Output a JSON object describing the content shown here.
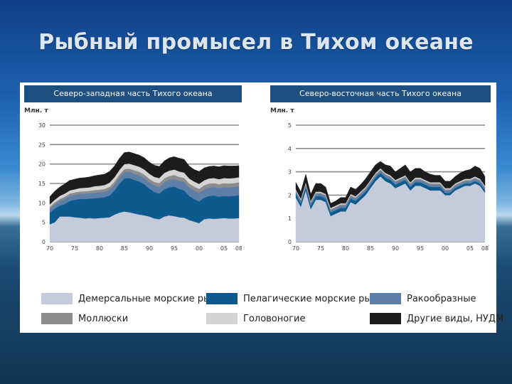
{
  "slide": {
    "title": "Рыбный промысел в Тихом океане"
  },
  "legend": [
    {
      "key": "dem",
      "label": "Демерсальные морские рыбы",
      "color": "#c4ccdb"
    },
    {
      "key": "pel",
      "label": "Пелагические морские рыбы",
      "color": "#0c5a8e"
    },
    {
      "key": "crust",
      "label": "Ракообразные",
      "color": "#5d7fa8"
    },
    {
      "key": "moll",
      "label": "Моллюски",
      "color": "#8c8c8c"
    },
    {
      "key": "ceph",
      "label": "Головоногие",
      "color": "#d4d4d4"
    },
    {
      "key": "other",
      "label": "Другие виды, НУДМ",
      "color": "#1c1c1c"
    }
  ],
  "chart_data": [
    {
      "type": "area",
      "stacked": true,
      "title": "Северо-западная часть Тихого океана",
      "ylabel": "Млн. т",
      "ylim": [
        0,
        30
      ],
      "yticks": [
        0,
        5,
        10,
        15,
        20,
        25,
        30
      ],
      "xticks": [
        "70",
        "75",
        "80",
        "85",
        "90",
        "95",
        "00",
        "05",
        "08"
      ],
      "x": [
        1970,
        1971,
        1972,
        1973,
        1974,
        1975,
        1976,
        1977,
        1978,
        1979,
        1980,
        1981,
        1982,
        1983,
        1984,
        1985,
        1986,
        1987,
        1988,
        1989,
        1990,
        1991,
        1992,
        1993,
        1994,
        1995,
        1996,
        1997,
        1998,
        1999,
        2000,
        2001,
        2002,
        2003,
        2004,
        2005,
        2006,
        2007,
        2008
      ],
      "series": [
        {
          "key": "dem",
          "values": [
            4.5,
            5.0,
            6.5,
            6.5,
            6.5,
            6.3,
            6.2,
            6.0,
            6.1,
            6.0,
            6.1,
            6.2,
            6.3,
            7.0,
            7.5,
            7.8,
            7.6,
            7.3,
            7.0,
            6.8,
            6.5,
            6.0,
            5.8,
            6.5,
            6.8,
            6.6,
            6.3,
            6.2,
            5.6,
            5.2,
            4.8,
            5.8,
            6.0,
            5.9,
            6.0,
            6.1,
            6.0,
            6.0,
            6.1
          ]
        },
        {
          "key": "pel",
          "values": [
            3.0,
            3.5,
            2.8,
            3.2,
            4.0,
            4.5,
            4.8,
            5.0,
            5.0,
            5.2,
            5.2,
            5.3,
            5.6,
            6.2,
            7.5,
            8.5,
            8.8,
            8.6,
            8.5,
            8.0,
            7.2,
            6.8,
            6.6,
            7.0,
            7.2,
            7.6,
            7.3,
            7.0,
            6.2,
            5.8,
            5.6,
            5.5,
            5.8,
            6.0,
            5.6,
            5.7,
            5.7,
            5.8,
            5.9
          ]
        },
        {
          "key": "crust",
          "values": [
            1.0,
            1.1,
            1.2,
            1.3,
            1.3,
            1.3,
            1.3,
            1.4,
            1.4,
            1.4,
            1.4,
            1.4,
            1.5,
            1.5,
            1.5,
            1.6,
            1.6,
            1.6,
            1.6,
            1.6,
            1.6,
            1.7,
            1.7,
            1.8,
            1.9,
            2.0,
            2.1,
            2.2,
            2.2,
            2.2,
            2.2,
            2.2,
            2.2,
            2.2,
            2.2,
            2.3,
            2.3,
            2.3,
            2.3
          ]
        },
        {
          "key": "moll",
          "values": [
            0.5,
            0.5,
            0.5,
            0.6,
            0.6,
            0.6,
            0.6,
            0.6,
            0.6,
            0.7,
            0.7,
            0.7,
            0.7,
            0.8,
            0.8,
            0.8,
            0.8,
            0.9,
            0.9,
            0.9,
            0.9,
            0.9,
            1.0,
            1.0,
            1.0,
            1.0,
            1.0,
            1.0,
            1.0,
            1.0,
            1.0,
            1.0,
            1.0,
            1.0,
            1.0,
            1.0,
            1.0,
            1.0,
            1.0
          ]
        },
        {
          "key": "ceph",
          "values": [
            0.6,
            0.7,
            0.8,
            0.8,
            0.8,
            0.8,
            0.9,
            0.9,
            0.9,
            1.0,
            1.0,
            1.0,
            1.1,
            1.1,
            1.2,
            1.3,
            1.3,
            1.3,
            1.3,
            1.3,
            1.3,
            1.3,
            1.3,
            1.4,
            1.4,
            1.4,
            1.4,
            1.4,
            1.3,
            1.3,
            1.3,
            1.3,
            1.3,
            1.3,
            1.3,
            1.3,
            1.3,
            1.3,
            1.3
          ]
        },
        {
          "key": "other",
          "values": [
            2.0,
            2.2,
            2.3,
            2.5,
            2.6,
            2.6,
            2.6,
            2.6,
            2.7,
            2.7,
            2.8,
            2.8,
            2.9,
            2.9,
            3.0,
            3.0,
            3.0,
            3.0,
            3.0,
            3.0,
            3.0,
            3.0,
            3.0,
            3.1,
            3.3,
            3.3,
            3.4,
            3.4,
            3.2,
            3.1,
            3.2,
            3.2,
            3.1,
            3.1,
            3.2,
            3.2,
            3.2,
            3.1,
            3.0
          ]
        }
      ]
    },
    {
      "type": "area",
      "stacked": true,
      "title": "Северо-восточная часть Тихого океана",
      "ylabel": "Млн. т",
      "ylim": [
        0,
        5
      ],
      "yticks": [
        0,
        1,
        2,
        3,
        4,
        5
      ],
      "xticks": [
        "70",
        "75",
        "80",
        "85",
        "90",
        "95",
        "00",
        "05",
        "08"
      ],
      "x": [
        1970,
        1971,
        1972,
        1973,
        1974,
        1975,
        1976,
        1977,
        1978,
        1979,
        1980,
        1981,
        1982,
        1983,
        1984,
        1985,
        1986,
        1987,
        1988,
        1989,
        1990,
        1991,
        1992,
        1993,
        1994,
        1995,
        1996,
        1997,
        1998,
        1999,
        2000,
        2001,
        2002,
        2003,
        2004,
        2005,
        2006,
        2007,
        2008
      ],
      "series": [
        {
          "key": "dem",
          "values": [
            1.9,
            1.5,
            2.2,
            1.4,
            1.8,
            1.8,
            1.7,
            1.1,
            1.2,
            1.3,
            1.3,
            1.7,
            1.6,
            1.8,
            2.0,
            2.3,
            2.6,
            2.8,
            2.6,
            2.5,
            2.3,
            2.4,
            2.5,
            2.2,
            2.4,
            2.4,
            2.3,
            2.2,
            2.2,
            2.2,
            2.0,
            2.0,
            2.2,
            2.3,
            2.4,
            2.4,
            2.5,
            2.4,
            2.1
          ]
        },
        {
          "key": "pel",
          "values": [
            0.15,
            0.15,
            0.15,
            0.15,
            0.15,
            0.15,
            0.15,
            0.15,
            0.15,
            0.15,
            0.15,
            0.15,
            0.15,
            0.15,
            0.15,
            0.15,
            0.15,
            0.15,
            0.15,
            0.15,
            0.15,
            0.15,
            0.15,
            0.15,
            0.15,
            0.15,
            0.15,
            0.15,
            0.15,
            0.15,
            0.1,
            0.1,
            0.1,
            0.1,
            0.1,
            0.1,
            0.1,
            0.1,
            0.1
          ]
        },
        {
          "key": "crust",
          "values": [
            0.1,
            0.1,
            0.1,
            0.1,
            0.1,
            0.1,
            0.1,
            0.1,
            0.1,
            0.1,
            0.1,
            0.1,
            0.1,
            0.1,
            0.1,
            0.1,
            0.1,
            0.1,
            0.1,
            0.1,
            0.1,
            0.1,
            0.1,
            0.1,
            0.1,
            0.1,
            0.1,
            0.1,
            0.1,
            0.1,
            0.1,
            0.1,
            0.1,
            0.1,
            0.1,
            0.1,
            0.1,
            0.1,
            0.1
          ]
        },
        {
          "key": "moll",
          "values": [
            0.05,
            0.05,
            0.05,
            0.05,
            0.05,
            0.05,
            0.05,
            0.05,
            0.05,
            0.05,
            0.05,
            0.05,
            0.05,
            0.05,
            0.05,
            0.05,
            0.05,
            0.05,
            0.05,
            0.05,
            0.05,
            0.05,
            0.05,
            0.05,
            0.05,
            0.05,
            0.05,
            0.05,
            0.05,
            0.05,
            0.05,
            0.05,
            0.05,
            0.05,
            0.05,
            0.05,
            0.05,
            0.05,
            0.05
          ]
        },
        {
          "key": "ceph",
          "values": [
            0.05,
            0.05,
            0.05,
            0.05,
            0.05,
            0.05,
            0.05,
            0.05,
            0.05,
            0.05,
            0.05,
            0.05,
            0.05,
            0.05,
            0.05,
            0.05,
            0.05,
            0.05,
            0.05,
            0.05,
            0.05,
            0.05,
            0.05,
            0.05,
            0.05,
            0.05,
            0.05,
            0.05,
            0.05,
            0.05,
            0.05,
            0.05,
            0.05,
            0.05,
            0.05,
            0.05,
            0.05,
            0.05,
            0.05
          ]
        },
        {
          "key": "other",
          "values": [
            0.3,
            0.3,
            0.35,
            0.3,
            0.35,
            0.35,
            0.3,
            0.2,
            0.2,
            0.25,
            0.25,
            0.3,
            0.3,
            0.3,
            0.35,
            0.35,
            0.35,
            0.3,
            0.35,
            0.4,
            0.35,
            0.4,
            0.45,
            0.45,
            0.4,
            0.4,
            0.35,
            0.35,
            0.3,
            0.3,
            0.3,
            0.3,
            0.3,
            0.35,
            0.35,
            0.4,
            0.45,
            0.45,
            0.4
          ]
        }
      ]
    }
  ]
}
